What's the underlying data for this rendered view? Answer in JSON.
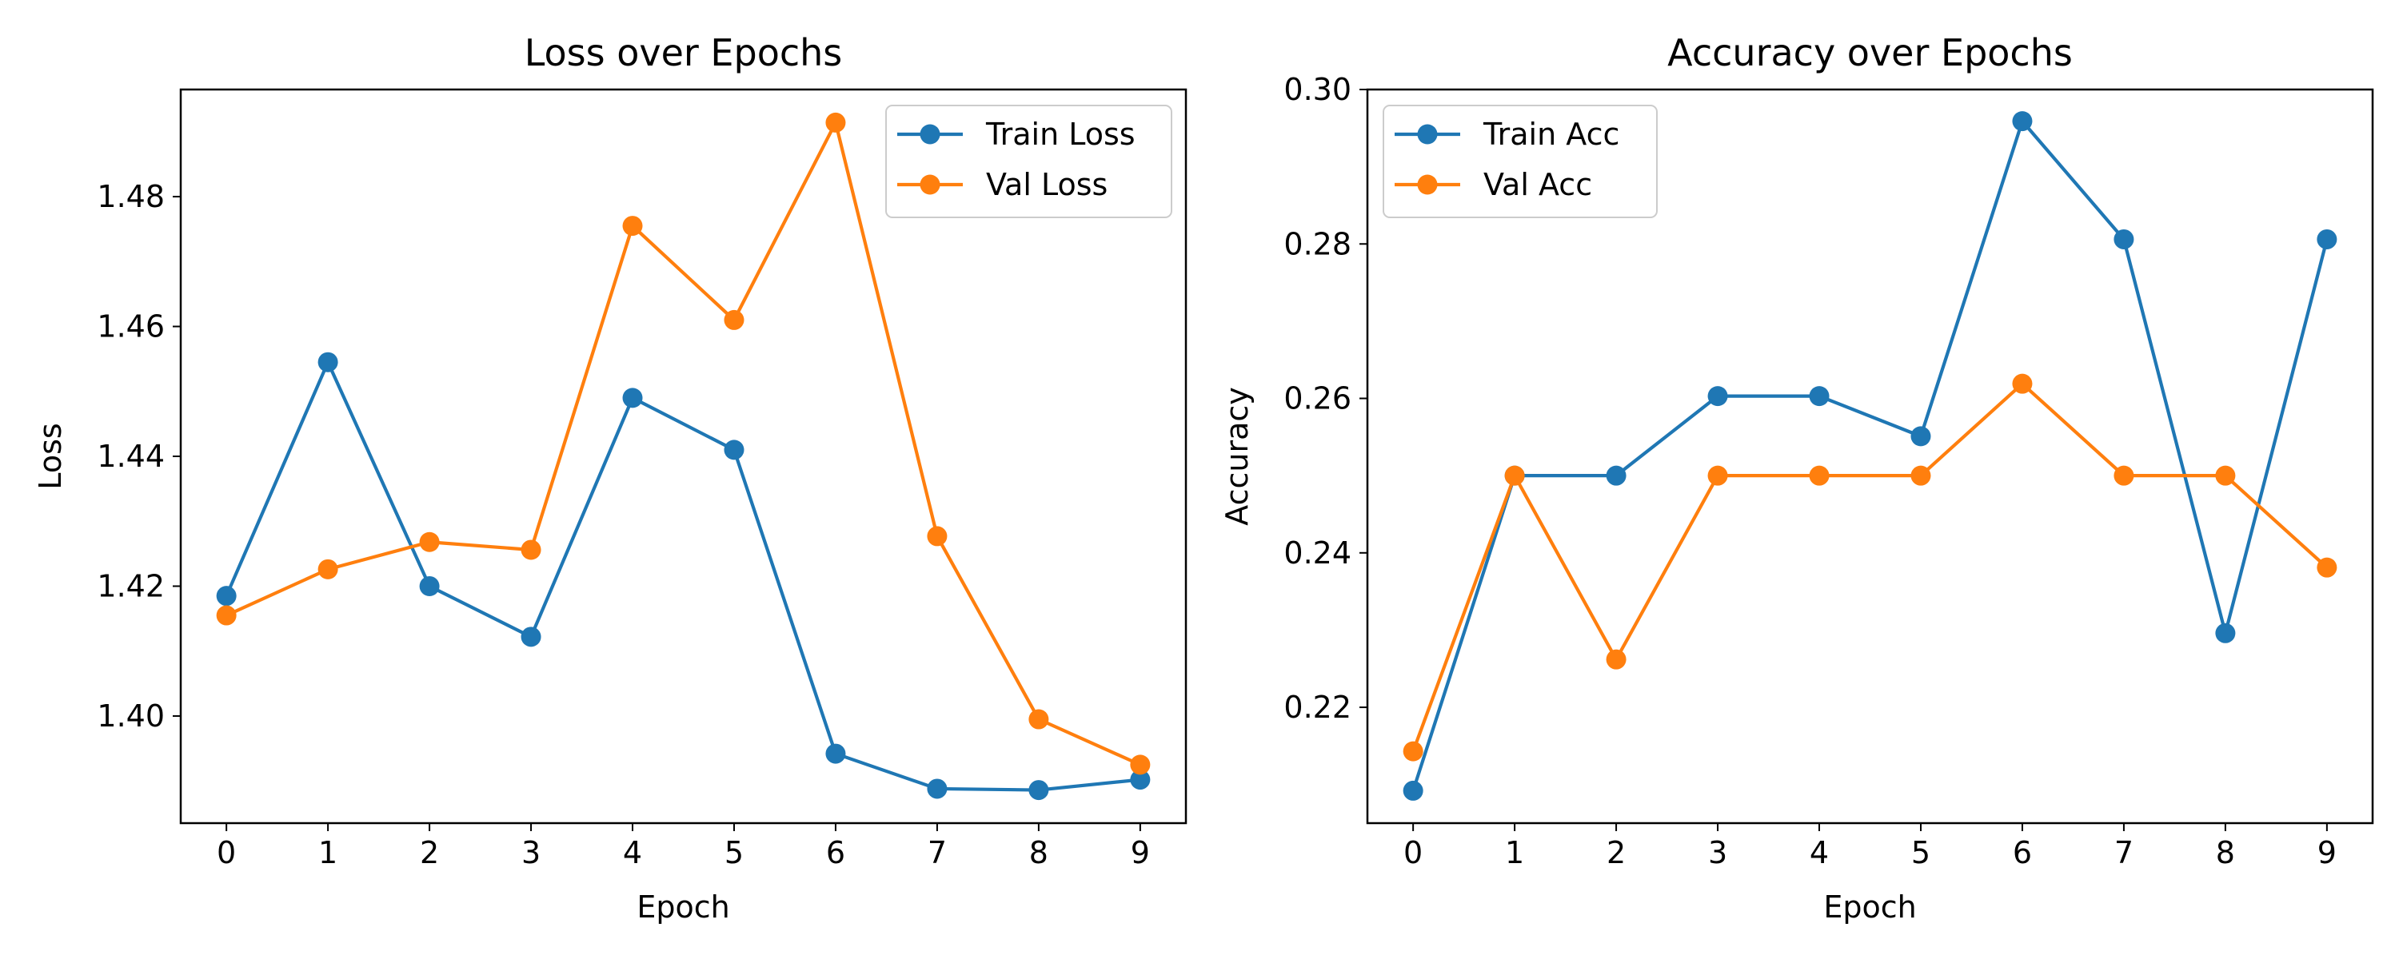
{
  "figure": {
    "background": "#ffffff"
  },
  "colors": {
    "train": "#1f77b4",
    "val": "#ff7f0e",
    "axis": "#000000",
    "legend_border": "#cccccc"
  },
  "chart_data": [
    {
      "type": "line",
      "title": "Loss over Epochs",
      "xlabel": "Epoch",
      "ylabel": "Loss",
      "x": [
        0,
        1,
        2,
        3,
        4,
        5,
        6,
        7,
        8,
        9
      ],
      "xticks": [
        "0",
        "1",
        "2",
        "3",
        "4",
        "5",
        "6",
        "7",
        "8",
        "9"
      ],
      "xlim": [
        -0.45,
        9.45
      ],
      "ylim": [
        1.3835,
        1.4965
      ],
      "yticks": [
        1.4,
        1.42,
        1.44,
        1.46,
        1.48
      ],
      "ytick_labels": [
        "1.40",
        "1.42",
        "1.44",
        "1.46",
        "1.48"
      ],
      "grid": false,
      "legend_position": "top-right",
      "series": [
        {
          "name": "Train Loss",
          "color": "#1f77b4",
          "marker": "circle",
          "values": [
            1.4185,
            1.4545,
            1.42,
            1.4122,
            1.449,
            1.441,
            1.3942,
            1.3888,
            1.3886,
            1.3902
          ]
        },
        {
          "name": "Val Loss",
          "color": "#ff7f0e",
          "marker": "circle",
          "values": [
            1.4155,
            1.4226,
            1.4268,
            1.4256,
            1.4755,
            1.461,
            1.4914,
            1.4277,
            1.3995,
            1.3925
          ]
        }
      ]
    },
    {
      "type": "line",
      "title": "Accuracy over Epochs",
      "xlabel": "Epoch",
      "ylabel": "Accuracy",
      "x": [
        0,
        1,
        2,
        3,
        4,
        5,
        6,
        7,
        8,
        9
      ],
      "xticks": [
        "0",
        "1",
        "2",
        "3",
        "4",
        "5",
        "6",
        "7",
        "8",
        "9"
      ],
      "xlim": [
        -0.45,
        9.45
      ],
      "ylim": [
        0.205,
        0.3
      ],
      "yticks": [
        0.22,
        0.24,
        0.26,
        0.28,
        0.3
      ],
      "ytick_labels": [
        "0.22",
        "0.24",
        "0.26",
        "0.28",
        "0.30"
      ],
      "grid": false,
      "legend_position": "top-left",
      "series": [
        {
          "name": "Train Acc",
          "color": "#1f77b4",
          "marker": "circle",
          "values": [
            0.2092,
            0.25,
            0.25,
            0.2603,
            0.2603,
            0.2551,
            0.2959,
            0.2806,
            0.2296,
            0.2806
          ]
        },
        {
          "name": "Val Acc",
          "color": "#ff7f0e",
          "marker": "circle",
          "values": [
            0.2143,
            0.25,
            0.2262,
            0.25,
            0.25,
            0.25,
            0.2619,
            0.25,
            0.25,
            0.2381
          ]
        }
      ]
    }
  ]
}
